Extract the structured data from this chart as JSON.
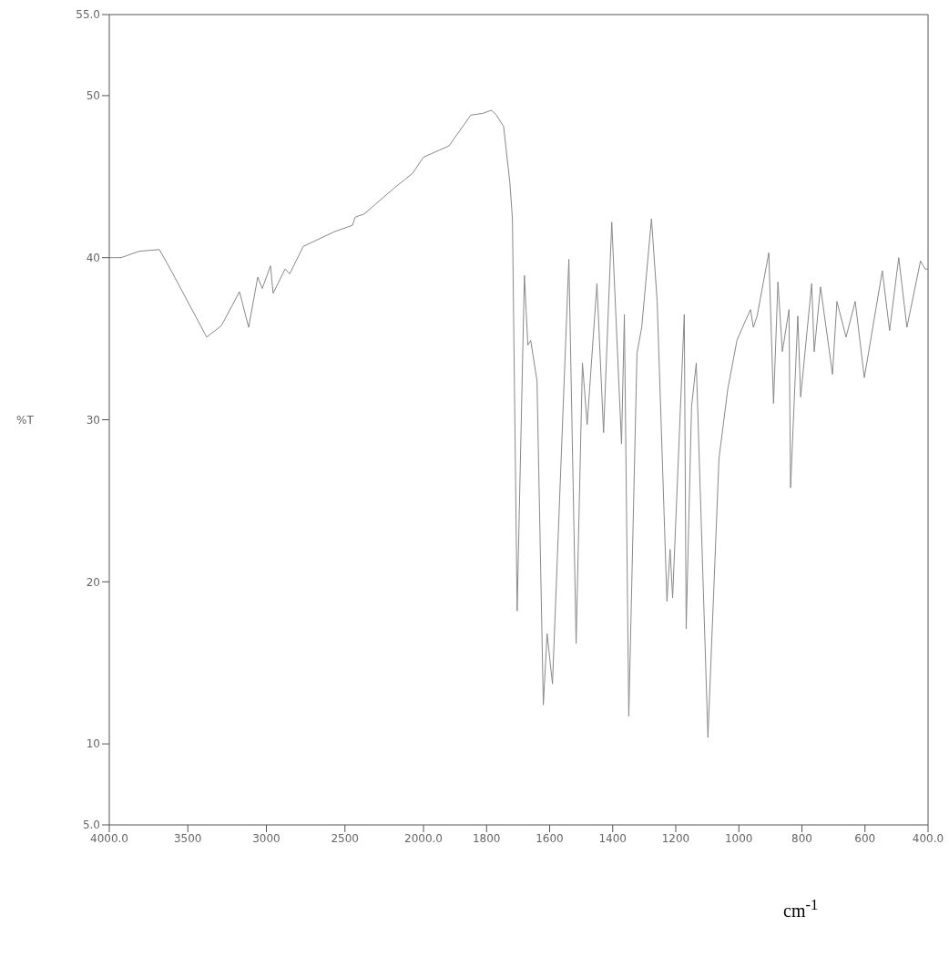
{
  "chart_data": [
    {
      "type": "line",
      "ylabel": "%T",
      "xlim": [
        4000,
        2000
      ],
      "xticks": [
        {
          "value": 4000,
          "label": "4000.0"
        },
        3500,
        3000,
        2500
      ],
      "ylim": [
        5,
        55
      ],
      "yticks": [
        {
          "value": 5,
          "label": "5.0"
        },
        10,
        20,
        30,
        40,
        50,
        {
          "value": 55,
          "label": "55.0"
        }
      ],
      "marker": "none",
      "line_style": "solid",
      "series": [
        {
          "color": "#888888",
          "x": [
            4000,
            3925,
            3809,
            3681,
            3606,
            3380,
            3287,
            3171,
            3113,
            3055,
            3026,
            2974,
            2957,
            2881,
            2852,
            2765,
            2568,
            2452,
            2435,
            2377,
            2186,
            2070,
            2000
          ],
          "values": [
            40.0,
            40.0,
            40.4,
            40.5,
            39.2,
            35.1,
            35.8,
            37.9,
            35.7,
            38.8,
            38.1,
            39.5,
            37.8,
            39.3,
            39.0,
            40.7,
            41.6,
            42.0,
            42.5,
            42.7,
            44.3,
            45.2,
            46.2
          ]
        }
      ]
    },
    {
      "type": "line",
      "xlabel": "cm$^{-1}$",
      "xlim": [
        2000,
        400
      ],
      "xticks": [
        {
          "value": 2000,
          "label": "2000.0"
        },
        1800,
        1600,
        1400,
        1200,
        1000,
        800,
        600,
        {
          "value": 400,
          "label": "400.0"
        }
      ],
      "ylim": [
        5,
        55
      ],
      "tick_labels": "x",
      "marker": "none",
      "line_style": "solid",
      "series": [
        {
          "color": "#888888",
          "x": [
            2000,
            1919,
            1850,
            1813,
            1784,
            1769,
            1746,
            1726,
            1718,
            1703,
            1680,
            1669,
            1660,
            1640,
            1620,
            1608,
            1591,
            1539,
            1516,
            1496,
            1481,
            1450,
            1429,
            1403,
            1372,
            1363,
            1349,
            1323,
            1308,
            1277,
            1259,
            1228,
            1218,
            1210,
            1173,
            1167,
            1150,
            1135,
            1098,
            1063,
            1035,
            1006,
            977,
            963,
            954,
            942,
            905,
            890,
            876,
            862,
            841,
            836,
            813,
            804,
            769,
            761,
            741,
            703,
            689,
            660,
            631,
            602,
            545,
            522,
            493,
            467,
            424,
            409,
            400
          ],
          "values": [
            46.2,
            46.9,
            48.8,
            48.9,
            49.1,
            48.8,
            48.1,
            44.6,
            42.4,
            18.2,
            38.9,
            34.6,
            34.9,
            32.4,
            12.4,
            16.8,
            13.7,
            39.9,
            16.2,
            33.5,
            29.7,
            38.4,
            29.2,
            42.2,
            28.5,
            36.5,
            11.7,
            34.1,
            35.7,
            42.4,
            37.3,
            18.8,
            22.0,
            19.0,
            36.5,
            17.1,
            30.8,
            33.5,
            10.4,
            27.6,
            31.9,
            34.9,
            36.2,
            36.8,
            35.7,
            36.4,
            40.3,
            31.0,
            38.5,
            34.2,
            36.8,
            25.8,
            36.4,
            31.4,
            38.4,
            34.2,
            38.2,
            32.8,
            37.3,
            35.1,
            37.3,
            32.6,
            39.2,
            35.5,
            40.0,
            35.7,
            39.8,
            39.3,
            39.3
          ]
        }
      ]
    }
  ]
}
